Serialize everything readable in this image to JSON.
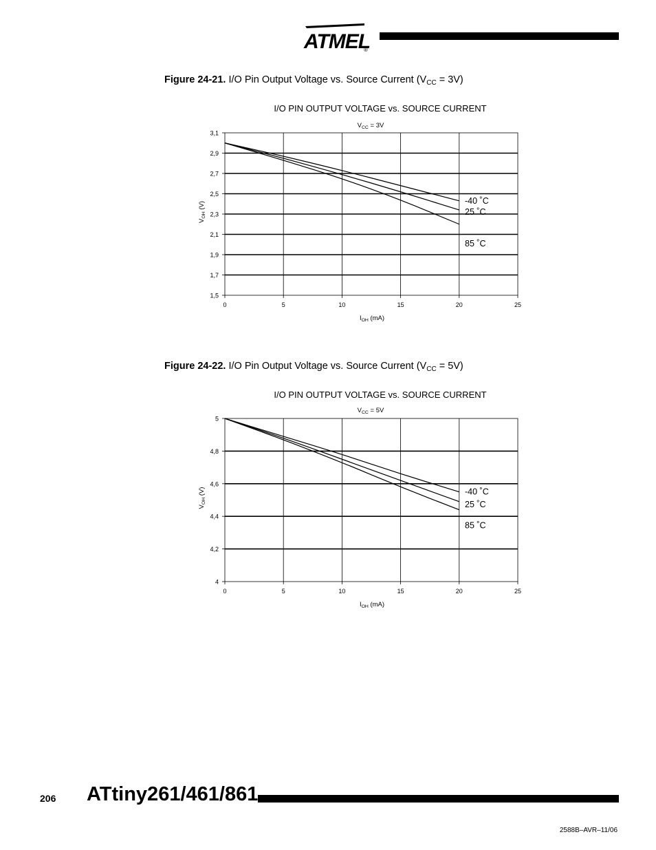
{
  "header": {
    "logo_text": "ATMEL",
    "registered_mark": "®"
  },
  "figures": [
    {
      "caption_number": "Figure 24-21.",
      "caption_text": "I/O Pin Output Voltage vs. Source Current (V",
      "caption_sub": "CC",
      "caption_end": " = 3V)"
    },
    {
      "caption_number": "Figure 24-22.",
      "caption_text": "I/O Pin Output Voltage vs. Source Current (V",
      "caption_sub": "CC",
      "caption_end": " = 5V)"
    }
  ],
  "chart_data": [
    {
      "type": "line",
      "title": "I/O PIN OUTPUT VOLTAGE vs. SOURCE CURRENT",
      "subtitle": "V",
      "subtitle_sub": "CC",
      "subtitle_end": " = 3V",
      "xlabel": "I",
      "xlabel_sub": "OH",
      "xlabel_end": " (mA)",
      "ylabel": "V",
      "ylabel_sub": "OH",
      "ylabel_end": " (V)",
      "xlim": [
        0,
        25
      ],
      "ylim": [
        1.5,
        3.1
      ],
      "xticks": [
        0,
        5,
        10,
        15,
        20,
        25
      ],
      "xtick_labels": [
        "0",
        "5",
        "10",
        "15",
        "20",
        "25"
      ],
      "yticks": [
        1.5,
        1.7,
        1.9,
        2.1,
        2.3,
        2.5,
        2.7,
        2.9,
        3.1
      ],
      "ytick_labels": [
        "1,5",
        "1,7",
        "1,9",
        "2,1",
        "2,3",
        "2,5",
        "2,7",
        "2,9",
        "3,1"
      ],
      "grid": true,
      "series": [
        {
          "name": "-40 ˚C",
          "x": [
            0,
            5,
            10,
            15,
            20
          ],
          "y": [
            3.0,
            2.87,
            2.73,
            2.58,
            2.43
          ]
        },
        {
          "name": "25 ˚C",
          "x": [
            0,
            5,
            10,
            15,
            20
          ],
          "y": [
            3.0,
            2.85,
            2.69,
            2.52,
            2.34
          ]
        },
        {
          "name": "85 ˚C",
          "x": [
            0,
            5,
            10,
            15,
            20
          ],
          "y": [
            3.0,
            2.83,
            2.65,
            2.44,
            2.2
          ]
        }
      ]
    },
    {
      "type": "line",
      "title": "I/O PIN OUTPUT VOLTAGE vs. SOURCE CURRENT",
      "subtitle": "V",
      "subtitle_sub": "CC",
      "subtitle_end": " = 5V",
      "xlabel": "I",
      "xlabel_sub": "OH",
      "xlabel_end": " (mA)",
      "ylabel": "V",
      "ylabel_sub": "OH",
      "ylabel_end": " (V)",
      "xlim": [
        0,
        25
      ],
      "ylim": [
        4,
        5
      ],
      "xticks": [
        0,
        5,
        10,
        15,
        20,
        25
      ],
      "xtick_labels": [
        "0",
        "5",
        "10",
        "15",
        "20",
        "25"
      ],
      "yticks": [
        4,
        4.2,
        4.4,
        4.6,
        4.8,
        5
      ],
      "ytick_labels": [
        "4",
        "4,2",
        "4,4",
        "4,6",
        "4,8",
        "5"
      ],
      "grid": true,
      "series": [
        {
          "name": "-40 ˚C",
          "x": [
            0,
            5,
            10,
            15,
            20
          ],
          "y": [
            5.0,
            4.89,
            4.78,
            4.66,
            4.55
          ]
        },
        {
          "name": "25 ˚C",
          "x": [
            0,
            5,
            10,
            15,
            20
          ],
          "y": [
            5.0,
            4.88,
            4.75,
            4.62,
            4.49
          ]
        },
        {
          "name": "85 ˚C",
          "x": [
            0,
            5,
            10,
            15,
            20
          ],
          "y": [
            5.0,
            4.87,
            4.73,
            4.58,
            4.44
          ]
        }
      ]
    }
  ],
  "footer": {
    "page_number": "206",
    "document_title": "ATtiny261/461/861",
    "document_code": "2588B–AVR–11/06"
  }
}
